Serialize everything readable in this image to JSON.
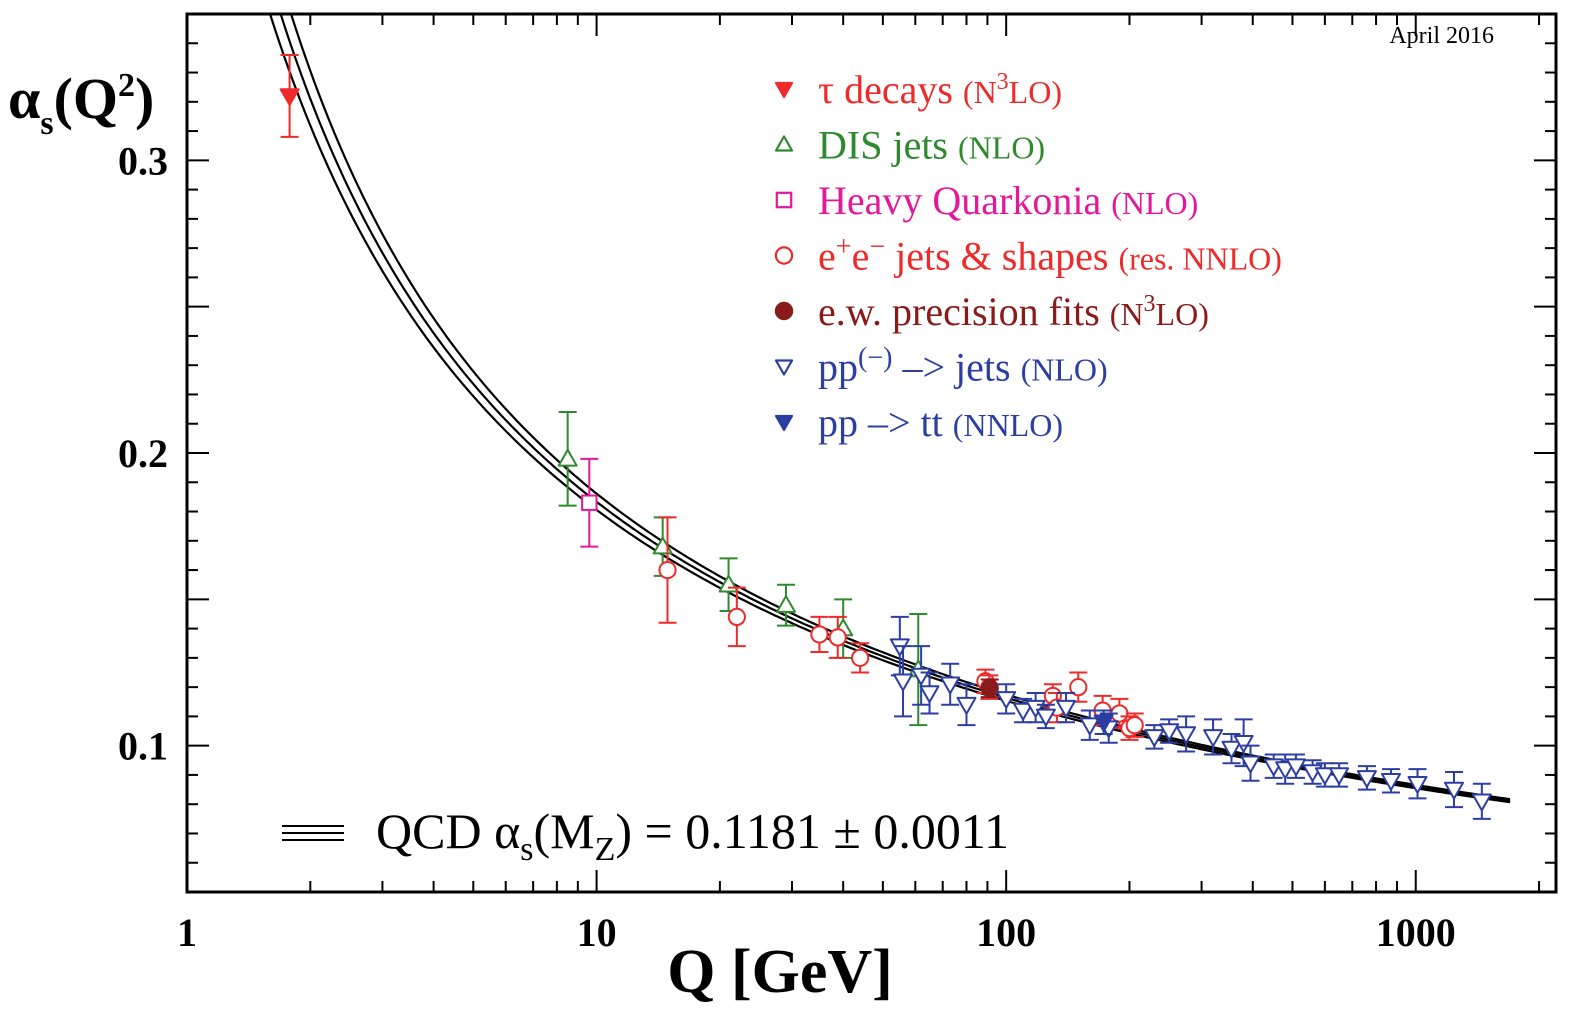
{
  "chart_data": {
    "type": "scatter",
    "title": "",
    "date_label": "April 2016",
    "xlabel": "Q [GeV]",
    "ylabel_main": "α",
    "ylabel_sub": "s",
    "ylabel_rest": "(Q",
    "ylabel_sup": "2",
    "ylabel_close": ")",
    "x_scale": "log",
    "xlim": [
      1,
      2200
    ],
    "ylim": [
      0.05,
      0.35
    ],
    "grid": false,
    "x_ticks": [
      {
        "value": 1,
        "label": "1"
      },
      {
        "value": 10,
        "label": "10"
      },
      {
        "value": 100,
        "label": "100"
      },
      {
        "value": 1000,
        "label": "1000"
      }
    ],
    "y_ticks": [
      {
        "value": 0.1,
        "label": "0.1"
      },
      {
        "value": 0.2,
        "label": "0.2"
      },
      {
        "value": 0.3,
        "label": "0.3"
      }
    ],
    "fit_band": {
      "label_parts": [
        "QCD α",
        "s",
        "(M",
        "Z",
        ") = 0.1181 ± 0.0011"
      ],
      "alpha_s_mz": 0.1181,
      "uncertainty": 0.0011,
      "mz": 91.19,
      "x_range": [
        1.32,
        1700
      ],
      "color": "#000000"
    },
    "legend_position": "top-right",
    "series": [
      {
        "name": "τ decays",
        "order": "(N3LO)",
        "name_parts": [
          {
            "text": "τ decays "
          },
          {
            "text": "(N",
            "small": true
          },
          {
            "text": "3",
            "small": true,
            "sup": true
          },
          {
            "text": "LO)",
            "small": true
          }
        ],
        "color": "#ee2a2a",
        "marker": "triangle-down-filled",
        "points": [
          {
            "x": 1.78,
            "y": 0.322,
            "err": 0.014
          }
        ]
      },
      {
        "name": "DIS jets",
        "order": "(NLO)",
        "name_parts": [
          {
            "text": "DIS jets "
          },
          {
            "text": "(NLO)",
            "small": true
          }
        ],
        "color": "#2f8a2f",
        "marker": "triangle-up-open",
        "points": [
          {
            "x": 8.5,
            "y": 0.198,
            "err": 0.016
          },
          {
            "x": 14.5,
            "y": 0.168,
            "err": 0.01
          },
          {
            "x": 21,
            "y": 0.155,
            "err": 0.009
          },
          {
            "x": 29,
            "y": 0.148,
            "err": 0.007
          },
          {
            "x": 40,
            "y": 0.14,
            "err": 0.01
          },
          {
            "x": 61,
            "y": 0.126,
            "err": 0.019
          }
        ]
      },
      {
        "name": "Heavy Quarkonia",
        "order": "(NLO)",
        "name_parts": [
          {
            "text": "Heavy Quarkonia "
          },
          {
            "text": "(NLO)",
            "small": true
          }
        ],
        "color": "#e5189a",
        "marker": "square-open",
        "points": [
          {
            "x": 9.6,
            "y": 0.183,
            "err": 0.015
          }
        ]
      },
      {
        "name": "e+e− jets & shapes",
        "order": "(res. NNLO)",
        "name_parts": [
          {
            "text": "e"
          },
          {
            "text": "+",
            "sup": true
          },
          {
            "text": "e"
          },
          {
            "text": "−",
            "sup": true
          },
          {
            "text": " jets & shapes "
          },
          {
            "text": "(res. NNLO)",
            "small": true
          }
        ],
        "color": "#ee2a2a",
        "marker": "circle-open",
        "points": [
          {
            "x": 14.9,
            "y": 0.16,
            "err": 0.018
          },
          {
            "x": 22,
            "y": 0.144,
            "err": 0.01
          },
          {
            "x": 35,
            "y": 0.138,
            "err": 0.006
          },
          {
            "x": 38.8,
            "y": 0.137,
            "err": 0.007
          },
          {
            "x": 44,
            "y": 0.13,
            "err": 0.005
          },
          {
            "x": 89,
            "y": 0.122,
            "err": 0.004
          },
          {
            "x": 91,
            "y": 0.12,
            "err": 0.004
          },
          {
            "x": 130,
            "y": 0.117,
            "err": 0.004
          },
          {
            "x": 133,
            "y": 0.113,
            "err": 0.005
          },
          {
            "x": 150,
            "y": 0.12,
            "err": 0.005
          },
          {
            "x": 172,
            "y": 0.112,
            "err": 0.005
          },
          {
            "x": 189,
            "y": 0.111,
            "err": 0.005
          },
          {
            "x": 200,
            "y": 0.106,
            "err": 0.004
          },
          {
            "x": 206,
            "y": 0.107,
            "err": 0.004
          }
        ]
      },
      {
        "name": "e.w. precision fits",
        "order": "(N3LO)",
        "name_parts": [
          {
            "text": "e.w. precision fits "
          },
          {
            "text": "(N",
            "small": true
          },
          {
            "text": "3",
            "small": true,
            "sup": true
          },
          {
            "text": "LO)",
            "small": true
          }
        ],
        "color": "#8b1a1a",
        "marker": "circle-filled",
        "points": [
          {
            "x": 91.19,
            "y": 0.1196,
            "err": 0.003
          }
        ]
      },
      {
        "name": "pp(bar) –> jets",
        "order": "(NLO)",
        "name_parts": [
          {
            "text": "pp"
          },
          {
            "text": "(−)",
            "sup": true
          },
          {
            "text": " –> jets "
          },
          {
            "text": "(NLO)",
            "small": true
          }
        ],
        "color": "#2d3ea3",
        "marker": "triangle-down-open",
        "points": [
          {
            "x": 55,
            "y": 0.134,
            "err": 0.01
          },
          {
            "x": 56,
            "y": 0.122,
            "err": 0.012
          },
          {
            "x": 62,
            "y": 0.124,
            "err": 0.01
          },
          {
            "x": 65,
            "y": 0.118,
            "err": 0.007
          },
          {
            "x": 73,
            "y": 0.121,
            "err": 0.007
          },
          {
            "x": 80,
            "y": 0.114,
            "err": 0.007
          },
          {
            "x": 100,
            "y": 0.116,
            "err": 0.005
          },
          {
            "x": 110,
            "y": 0.112,
            "err": 0.004
          },
          {
            "x": 118,
            "y": 0.113,
            "err": 0.005
          },
          {
            "x": 125,
            "y": 0.11,
            "err": 0.004
          },
          {
            "x": 140,
            "y": 0.113,
            "err": 0.005
          },
          {
            "x": 160,
            "y": 0.107,
            "err": 0.005
          },
          {
            "x": 178,
            "y": 0.106,
            "err": 0.005
          },
          {
            "x": 230,
            "y": 0.103,
            "err": 0.004
          },
          {
            "x": 250,
            "y": 0.105,
            "err": 0.004
          },
          {
            "x": 275,
            "y": 0.104,
            "err": 0.006
          },
          {
            "x": 320,
            "y": 0.103,
            "err": 0.006
          },
          {
            "x": 355,
            "y": 0.099,
            "err": 0.005
          },
          {
            "x": 380,
            "y": 0.101,
            "err": 0.008
          },
          {
            "x": 395,
            "y": 0.094,
            "err": 0.006
          },
          {
            "x": 450,
            "y": 0.093,
            "err": 0.004
          },
          {
            "x": 480,
            "y": 0.092,
            "err": 0.005
          },
          {
            "x": 510,
            "y": 0.093,
            "err": 0.004
          },
          {
            "x": 560,
            "y": 0.091,
            "err": 0.004
          },
          {
            "x": 600,
            "y": 0.09,
            "err": 0.004
          },
          {
            "x": 650,
            "y": 0.09,
            "err": 0.004
          },
          {
            "x": 760,
            "y": 0.089,
            "err": 0.004
          },
          {
            "x": 870,
            "y": 0.088,
            "err": 0.004
          },
          {
            "x": 1010,
            "y": 0.087,
            "err": 0.005
          },
          {
            "x": 1240,
            "y": 0.085,
            "err": 0.006
          },
          {
            "x": 1450,
            "y": 0.081,
            "err": 0.006
          }
        ]
      },
      {
        "name": "pp –> tt",
        "order": "(NNLO)",
        "name_parts": [
          {
            "text": "pp –> tt "
          },
          {
            "text": "(NNLO)",
            "small": true
          }
        ],
        "color": "#2d3ea3",
        "marker": "triangle-down-filled",
        "points": [
          {
            "x": 173,
            "y": 0.108,
            "err": 0.004
          }
        ]
      }
    ]
  }
}
